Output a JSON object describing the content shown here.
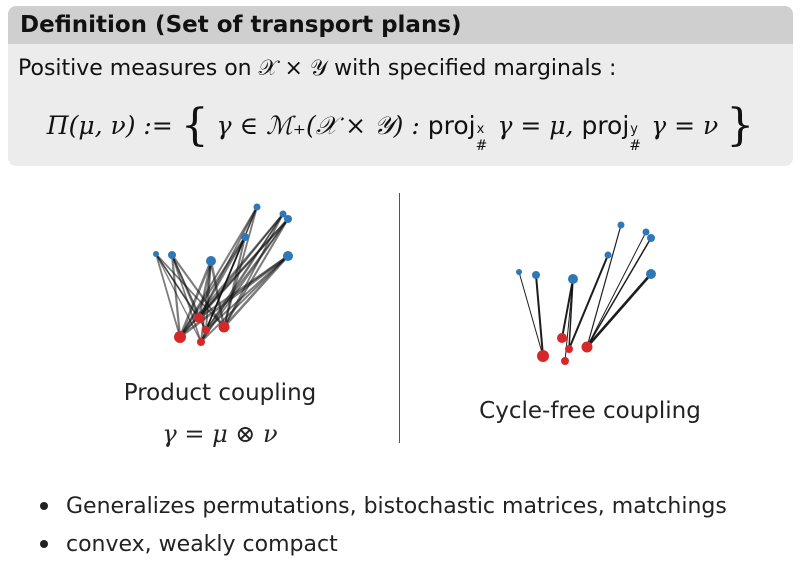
{
  "definition": {
    "title": "Definition (Set of transport plans)",
    "intro": "Positive measures on 𝒳 × 𝒴 with specified marginals :"
  },
  "formula": {
    "lhs": "Π(μ, ν) :=",
    "set_body": "γ ∈ ℳ₊(𝒳 × 𝒴) :",
    "proj": "proj",
    "proj_x_sup": "x",
    "proj_y_sup": "y",
    "push_sub": "#",
    "eq1": "γ = μ,",
    "eq2": "γ = ν"
  },
  "diagrams": {
    "left_caption": "Product coupling",
    "left_formula": "γ = μ ⊗ ν",
    "right_caption": "Cycle-free coupling",
    "colors": {
      "source": "#2e78b8",
      "target": "#d62828",
      "line": "#111111"
    }
  },
  "bullets": [
    "Generalizes permutations, bistochastic matrices, matchings",
    "convex, weakly compact"
  ]
}
